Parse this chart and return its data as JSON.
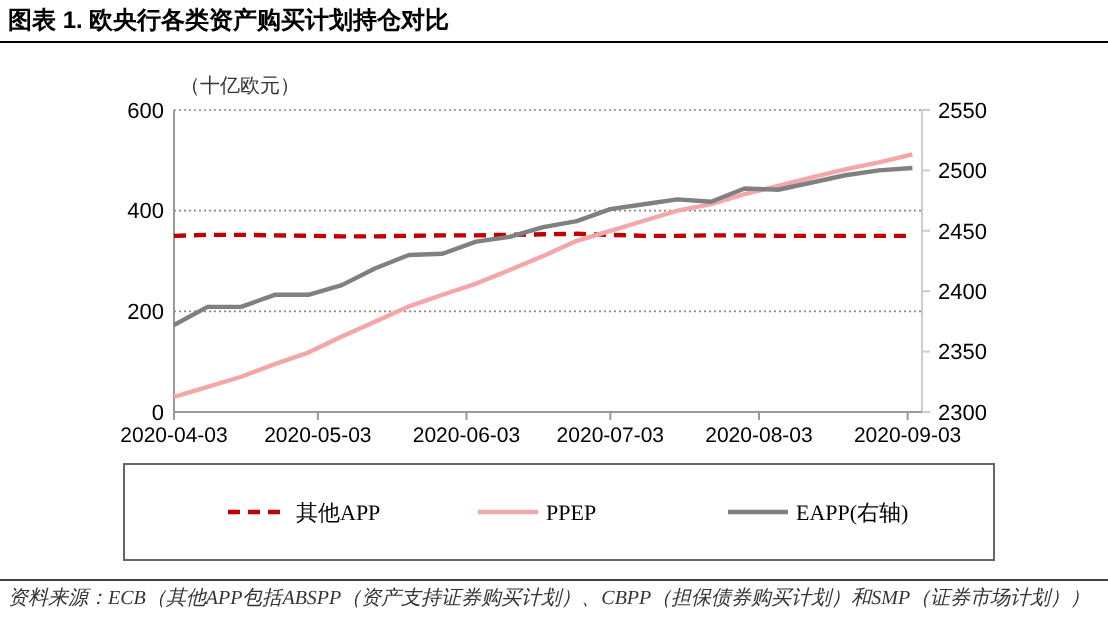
{
  "chart_data": {
    "type": "line",
    "title": "图表 1. 欧央行各类资产购买计划持仓对比",
    "ylabel": "（十亿欧元）",
    "x": [
      "2020-04-03",
      "2020-04-10",
      "2020-04-17",
      "2020-04-24",
      "2020-05-01",
      "2020-05-08",
      "2020-05-15",
      "2020-05-22",
      "2020-05-29",
      "2020-06-05",
      "2020-06-12",
      "2020-06-19",
      "2020-06-26",
      "2020-07-03",
      "2020-07-10",
      "2020-07-17",
      "2020-07-24",
      "2020-07-31",
      "2020-08-07",
      "2020-08-14",
      "2020-08-21",
      "2020-08-28",
      "2020-09-04"
    ],
    "series": [
      {
        "name": "其他APP",
        "color": "#c00000",
        "line_style": "dashed",
        "values": [
          350,
          352,
          352,
          351,
          350,
          349,
          349,
          350,
          351,
          351,
          352,
          353,
          354,
          352,
          350,
          350,
          351,
          351,
          350,
          350,
          350,
          350,
          350
        ]
      },
      {
        "name": "PPEP",
        "color": "#f4a7a9",
        "values": [
          30,
          50,
          70,
          95,
          118,
          150,
          180,
          210,
          233,
          255,
          282,
          310,
          340,
          360,
          380,
          400,
          413,
          433,
          449,
          466,
          482,
          496,
          512
        ]
      },
      {
        "name": "EAPP(右轴)",
        "color": "#808080",
        "axis": "y2",
        "values": [
          2372,
          2387,
          2387,
          2397,
          2397,
          2405,
          2419,
          2430,
          2431,
          2441,
          2445,
          2453,
          2458,
          2468,
          2472,
          2476,
          2474,
          2485,
          2484,
          2490,
          2496,
          2500,
          2502
        ]
      }
    ],
    "xlim": [
      "2020-04-03",
      "2020-09-06"
    ],
    "xticks": [
      "2020-04-03",
      "2020-05-03",
      "2020-06-03",
      "2020-07-03",
      "2020-08-03",
      "2020-09-03"
    ],
    "ylim": [
      0,
      600
    ],
    "yticks": [
      0,
      200,
      400,
      600
    ],
    "y2lim": [
      2300,
      2550
    ],
    "y2ticks": [
      2300,
      2350,
      2400,
      2450,
      2500,
      2550
    ],
    "grid": "y",
    "legend": "bottom",
    "line_style": "solid",
    "annotations": [
      "资料来源：ECB（其他APP包括ABSPP（资产支持证券购买计划）、CBPP（担保债券购买计划）和SMP（证券市场计划））"
    ]
  }
}
